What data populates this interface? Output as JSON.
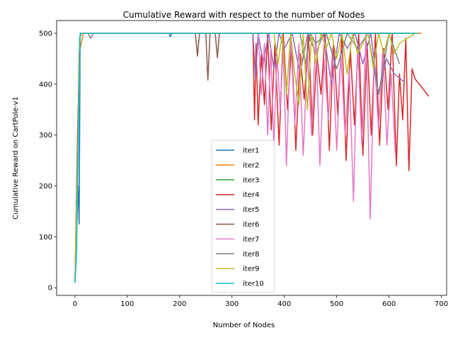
{
  "chart_data": {
    "type": "line",
    "title": "Cumulative Reward with respect to the number of Nodes",
    "xlabel": "Number of Nodes",
    "ylabel": "Cumulative Reward on CartPole-v1",
    "xlim": [
      -35,
      710
    ],
    "ylim": [
      -15,
      525
    ],
    "xticks": [
      0,
      100,
      200,
      300,
      400,
      500,
      600,
      700
    ],
    "yticks": [
      0,
      100,
      200,
      300,
      400,
      500
    ],
    "grid": false,
    "legend_position": "bottom-center",
    "series": [
      {
        "name": "iter1",
        "color": "#1f77b4",
        "x": [
          0,
          3,
          6,
          8,
          10,
          12,
          20,
          60,
          120,
          180,
          182,
          185,
          250,
          400,
          560,
          620
        ],
        "y": [
          10,
          100,
          200,
          125,
          500,
          500,
          500,
          500,
          500,
          500,
          493,
          500,
          500,
          500,
          500,
          500
        ]
      },
      {
        "name": "iter2",
        "color": "#ff7f0e",
        "x": [
          0,
          4,
          8,
          12,
          16,
          20,
          60,
          150,
          300,
          450,
          600,
          662
        ],
        "y": [
          10,
          200,
          460,
          480,
          500,
          500,
          500,
          500,
          500,
          500,
          500,
          500
        ]
      },
      {
        "name": "iter3",
        "color": "#2ca02c",
        "x": [
          0,
          3,
          6,
          9,
          12,
          50,
          150,
          250,
          350,
          450,
          550,
          640
        ],
        "y": [
          10,
          120,
          300,
          490,
          500,
          500,
          500,
          500,
          500,
          500,
          500,
          500
        ]
      },
      {
        "name": "iter4",
        "color": "#d62728",
        "x": [
          0,
          5,
          10,
          50,
          200,
          340,
          343,
          346,
          350,
          356,
          362,
          368,
          375,
          382,
          390,
          398,
          406,
          414,
          422,
          430,
          438,
          446,
          454,
          462,
          470,
          478,
          486,
          494,
          502,
          510,
          518,
          526,
          534,
          542,
          550,
          558,
          566,
          574,
          582,
          590,
          598,
          606,
          614,
          620,
          626,
          632,
          638,
          644,
          650,
          676
        ],
        "y": [
          10,
          250,
          500,
          500,
          500,
          500,
          330,
          480,
          320,
          460,
          360,
          500,
          310,
          480,
          280,
          500,
          350,
          480,
          270,
          460,
          370,
          500,
          300,
          460,
          380,
          500,
          270,
          480,
          340,
          500,
          250,
          470,
          320,
          500,
          260,
          480,
          300,
          500,
          280,
          470,
          350,
          500,
          240,
          420,
          330,
          490,
          230,
          430,
          410,
          376
        ]
      },
      {
        "name": "iter5",
        "color": "#9467bd",
        "x": [
          0,
          5,
          10,
          100,
          250,
          340,
          345,
          350,
          360,
          370,
          380,
          390,
          400,
          415,
          430,
          445,
          460,
          475,
          490,
          505,
          520,
          535,
          550,
          565,
          580,
          595,
          610,
          628
        ],
        "y": [
          10,
          300,
          500,
          500,
          500,
          500,
          410,
          500,
          440,
          500,
          430,
          500,
          470,
          500,
          420,
          500,
          460,
          500,
          400,
          500,
          470,
          500,
          440,
          500,
          380,
          450,
          420,
          405
        ]
      },
      {
        "name": "iter6",
        "color": "#8c564b",
        "x": [
          0,
          5,
          10,
          100,
          200,
          230,
          234,
          238,
          250,
          254,
          258,
          268,
          272,
          276,
          300,
          400,
          500,
          600
        ],
        "y": [
          10,
          300,
          500,
          500,
          500,
          500,
          455,
          500,
          500,
          408,
          500,
          500,
          452,
          500,
          500,
          500,
          500,
          500
        ]
      },
      {
        "name": "iter7",
        "color": "#e377c2",
        "x": [
          0,
          5,
          10,
          100,
          250,
          350,
          356,
          362,
          368,
          374,
          380,
          386,
          392,
          398,
          404,
          412,
          420,
          428,
          436,
          444,
          452,
          460,
          468,
          476,
          484,
          492,
          500,
          508,
          516,
          524,
          532,
          540,
          548,
          556,
          564,
          572,
          580,
          588,
          596,
          604,
          612
        ],
        "y": [
          10,
          250,
          500,
          500,
          500,
          500,
          380,
          480,
          300,
          470,
          280,
          460,
          350,
          470,
          240,
          500,
          320,
          480,
          260,
          460,
          300,
          500,
          240,
          450,
          330,
          470,
          270,
          460,
          300,
          430,
          170,
          480,
          280,
          500,
          135,
          450,
          310,
          470,
          280,
          420,
          265
        ]
      },
      {
        "name": "iter8",
        "color": "#7f7f7f",
        "x": [
          0,
          5,
          10,
          20,
          25,
          30,
          35,
          100,
          250,
          400,
          430,
          440,
          450,
          460,
          480,
          500,
          520,
          540,
          560,
          580,
          600,
          620
        ],
        "y": [
          10,
          250,
          500,
          500,
          500,
          490,
          500,
          500,
          500,
          500,
          500,
          440,
          500,
          480,
          500,
          430,
          500,
          470,
          500,
          380,
          500,
          440
        ]
      },
      {
        "name": "iter9",
        "color": "#bcbd22",
        "x": [
          0,
          5,
          10,
          100,
          300,
          380,
          388,
          396,
          404,
          412,
          420,
          428,
          436,
          444,
          452,
          460,
          470,
          480,
          490,
          500,
          510,
          520,
          530,
          540,
          550,
          560,
          570,
          580,
          590,
          600,
          610,
          620,
          650
        ],
        "y": [
          10,
          250,
          500,
          500,
          500,
          500,
          440,
          500,
          380,
          500,
          420,
          360,
          500,
          350,
          500,
          440,
          500,
          470,
          500,
          450,
          500,
          420,
          500,
          460,
          480,
          500,
          430,
          500,
          460,
          500,
          460,
          480,
          500
        ]
      },
      {
        "name": "iter10",
        "color": "#17becf",
        "x": [
          0,
          3,
          6,
          10,
          100,
          300,
          500,
          655
        ],
        "y": [
          10,
          60,
          250,
          500,
          500,
          500,
          500,
          500
        ]
      }
    ]
  }
}
